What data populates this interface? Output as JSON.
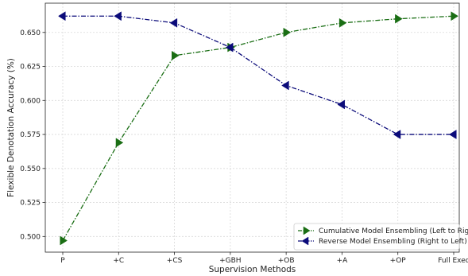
{
  "chart_data": {
    "type": "line",
    "title": "",
    "xlabel": "Supervision Methods",
    "ylabel": "Flexible Denotation Accuracy (%)",
    "categories": [
      "P",
      "+C",
      "+CS",
      "+GBH",
      "+OB",
      "+A",
      "+OP",
      "Full Exec"
    ],
    "ylim": [
      0.4885,
      0.6715
    ],
    "yticks": [
      0.5,
      0.525,
      0.55,
      0.575,
      0.6,
      0.625,
      0.65
    ],
    "ytick_labels": [
      "0.500",
      "0.525",
      "0.550",
      "0.575",
      "0.600",
      "0.625",
      "0.650"
    ],
    "grid": true,
    "legend_position": "bottom-right",
    "series": [
      {
        "name": "Cumulative Model Ensembling (Left to Right)",
        "values": [
          0.497,
          0.569,
          0.633,
          0.639,
          0.65,
          0.657,
          0.66,
          0.662
        ],
        "color": "#1a6e14",
        "marker": "triangle-right",
        "linestyle": "dashdot"
      },
      {
        "name": "Reverse Model Ensembling (Right to Left)",
        "values": [
          0.662,
          0.662,
          0.657,
          0.639,
          0.611,
          0.597,
          0.575,
          0.575
        ],
        "color": "#0b0b7a",
        "marker": "triangle-left",
        "linestyle": "dashdot"
      }
    ]
  }
}
